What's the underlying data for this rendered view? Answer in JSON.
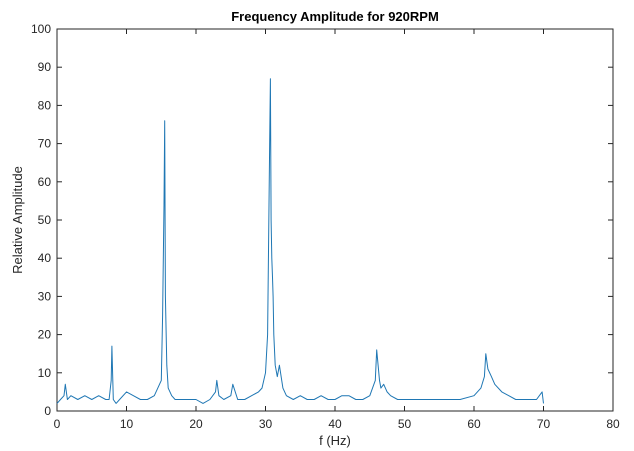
{
  "chart_data": {
    "type": "line",
    "title": "Frequency Amplitude for 920RPM",
    "xlabel": "f (Hz)",
    "ylabel": "Relative Amplitude",
    "xlim": [
      0,
      80
    ],
    "ylim": [
      0,
      100
    ],
    "x_ticks": [
      "0",
      "10",
      "20",
      "30",
      "40",
      "50",
      "60",
      "70",
      "80"
    ],
    "y_ticks": [
      "0",
      "10",
      "20",
      "30",
      "40",
      "50",
      "60",
      "70",
      "80",
      "90",
      "100"
    ],
    "grid": false,
    "legend": "none",
    "series_color": "#1f77b4",
    "series": [
      {
        "x": [
          0,
          0.5,
          1,
          1.2,
          1.5,
          2,
          3,
          4,
          5,
          6,
          7,
          7.5,
          7.8,
          7.9,
          8.1,
          8.5,
          9,
          10,
          11,
          12,
          13,
          14,
          14.5,
          15,
          15.2,
          15.4,
          15.5,
          15.6,
          15.8,
          16,
          16.5,
          17,
          18,
          19,
          20,
          21,
          22,
          22.8,
          23,
          23.3,
          24,
          25,
          25.3,
          26,
          27,
          28,
          29,
          29.5,
          30,
          30.3,
          30.6,
          30.7,
          30.8,
          30.9,
          31,
          31.1,
          31.2,
          31.4,
          31.7,
          32,
          32.5,
          33,
          34,
          35,
          36,
          37,
          38,
          39,
          40,
          41,
          42,
          43,
          44,
          45,
          45.8,
          46,
          46.2,
          46.4,
          46.6,
          47,
          47.5,
          48,
          49,
          50,
          52,
          54,
          56,
          58,
          60,
          61,
          61.5,
          61.7,
          62,
          62.5,
          63,
          64,
          65,
          66,
          67,
          68,
          69,
          69.8,
          70
        ],
        "y": [
          2,
          3,
          4,
          7,
          3,
          4,
          3,
          4,
          3,
          4,
          3,
          3,
          8,
          17,
          3,
          2,
          3,
          5,
          4,
          3,
          3,
          4,
          6,
          8,
          25,
          54,
          76,
          30,
          12,
          6,
          4,
          3,
          3,
          3,
          3,
          2,
          3,
          5,
          8,
          4,
          3,
          4,
          7,
          3,
          3,
          4,
          5,
          6,
          10,
          20,
          71,
          87,
          50,
          40,
          35,
          30,
          20,
          12,
          9,
          12,
          6,
          4,
          3,
          4,
          3,
          3,
          4,
          3,
          3,
          4,
          4,
          3,
          3,
          4,
          8,
          16,
          12,
          8,
          6,
          7,
          5,
          4,
          3,
          3,
          3,
          3,
          3,
          3,
          4,
          6,
          9,
          15,
          11,
          9,
          7,
          5,
          4,
          3,
          3,
          3,
          3,
          5,
          2
        ]
      }
    ]
  }
}
